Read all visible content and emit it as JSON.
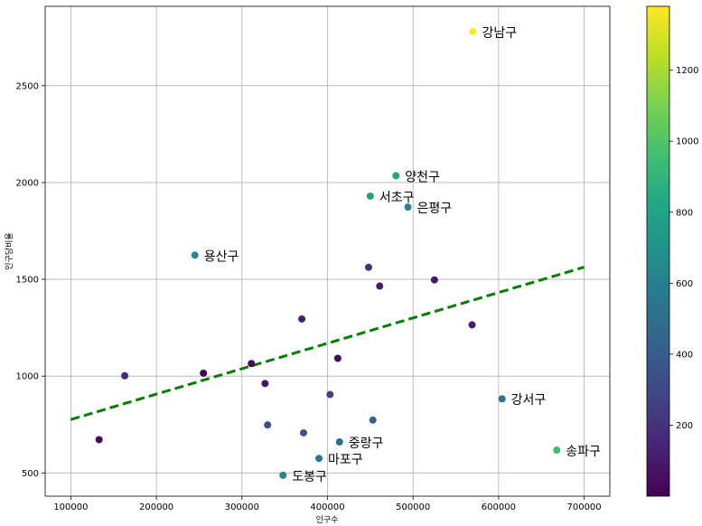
{
  "chart_data": {
    "type": "scatter",
    "xlabel": "인구수",
    "ylabel": "인구당비율",
    "xlim": [
      70000,
      730000
    ],
    "ylim": [
      380,
      2910
    ],
    "x_ticks": [
      100000,
      200000,
      300000,
      400000,
      500000,
      600000,
      700000
    ],
    "y_ticks": [
      500,
      1000,
      1500,
      2000,
      2500
    ],
    "grid": true,
    "colormap": "viridis",
    "colorbar": {
      "min": 0,
      "max": 1380,
      "ticks": [
        200,
        400,
        600,
        800,
        1000,
        1200
      ]
    },
    "points": [
      {
        "x": 570000,
        "y": 2780,
        "c": 1380,
        "label": "강남구"
      },
      {
        "x": 480000,
        "y": 2035,
        "c": 800,
        "label": "양천구"
      },
      {
        "x": 450000,
        "y": 1930,
        "c": 780,
        "label": "서초구"
      },
      {
        "x": 494000,
        "y": 1873,
        "c": 600,
        "label": "은평구"
      },
      {
        "x": 245000,
        "y": 1625,
        "c": 650,
        "label": "용산구"
      },
      {
        "x": 448000,
        "y": 1562,
        "c": 200,
        "label": ""
      },
      {
        "x": 461000,
        "y": 1465,
        "c": 100,
        "label": ""
      },
      {
        "x": 525000,
        "y": 1497,
        "c": 90,
        "label": ""
      },
      {
        "x": 370000,
        "y": 1295,
        "c": 120,
        "label": ""
      },
      {
        "x": 569000,
        "y": 1265,
        "c": 110,
        "label": ""
      },
      {
        "x": 412000,
        "y": 1092,
        "c": 30,
        "label": ""
      },
      {
        "x": 311000,
        "y": 1065,
        "c": 20,
        "label": ""
      },
      {
        "x": 255000,
        "y": 1015,
        "c": 10,
        "label": ""
      },
      {
        "x": 163000,
        "y": 1002,
        "c": 150,
        "label": ""
      },
      {
        "x": 327000,
        "y": 962,
        "c": 80,
        "label": ""
      },
      {
        "x": 403000,
        "y": 905,
        "c": 250,
        "label": ""
      },
      {
        "x": 604000,
        "y": 883,
        "c": 520,
        "label": "강서구"
      },
      {
        "x": 453000,
        "y": 773,
        "c": 420,
        "label": ""
      },
      {
        "x": 330000,
        "y": 748,
        "c": 300,
        "label": ""
      },
      {
        "x": 372000,
        "y": 707,
        "c": 350,
        "label": ""
      },
      {
        "x": 133000,
        "y": 672,
        "c": 30,
        "label": ""
      },
      {
        "x": 414000,
        "y": 660,
        "c": 500,
        "label": "중랑구"
      },
      {
        "x": 668000,
        "y": 618,
        "c": 940,
        "label": "송파구"
      },
      {
        "x": 390000,
        "y": 575,
        "c": 560,
        "label": "마포구"
      },
      {
        "x": 348000,
        "y": 488,
        "c": 620,
        "label": "도봉구"
      }
    ],
    "trendline": {
      "x": [
        100000,
        700000
      ],
      "y": [
        776,
        1563
      ],
      "color": "#008000",
      "style": "dashed"
    }
  }
}
